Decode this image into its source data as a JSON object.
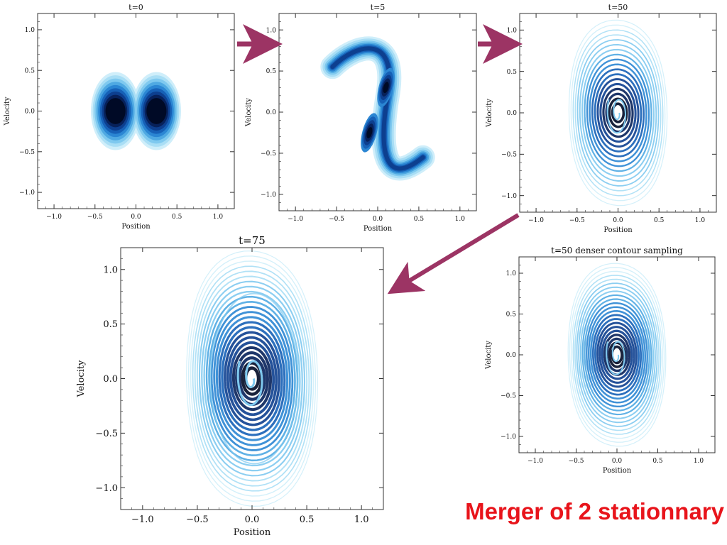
{
  "caption": {
    "text": "Merger of 2 stationnary",
    "color": "#e8141b"
  },
  "colors": {
    "arrow": "#9c3464",
    "axis": "#333333",
    "levels": [
      "#cfeefa",
      "#a9def5",
      "#7fc9ef",
      "#4fa9e2",
      "#2b86d3",
      "#1660b6",
      "#0d3f8f",
      "#07215a",
      "#000a26"
    ]
  },
  "chart_data": [
    {
      "type": "heatmap",
      "title": "t=0",
      "xlabel": "Position",
      "ylabel": "Velocity",
      "xlim": [
        -1.2,
        1.2
      ],
      "ylim": [
        -1.2,
        1.2
      ],
      "xticks": [
        "−1.0",
        "−0.5",
        "0.0",
        "0.5",
        "1.0"
      ],
      "yticks": [
        "1.0",
        "0.5",
        "0.0",
        "−0.5",
        "−1.0"
      ],
      "xtick_values": [
        -1.0,
        -0.5,
        0.0,
        0.5,
        1.0
      ],
      "ytick_values": [
        1.0,
        0.5,
        0.0,
        -0.5,
        -1.0
      ],
      "style": "filled",
      "components": [
        {
          "x": -0.25,
          "y": 0.0
        },
        {
          "x": 0.25,
          "y": 0.0
        }
      ]
    },
    {
      "type": "heatmap",
      "title": "t=5",
      "xlabel": "Position",
      "ylabel": "Velocity",
      "xlim": [
        -1.2,
        1.2
      ],
      "ylim": [
        -1.2,
        1.2
      ],
      "xticks": [
        "−1.0",
        "−0.5",
        "0.0",
        "0.5",
        "1.0"
      ],
      "yticks": [
        "1.0",
        "0.5",
        "0.0",
        "−0.5",
        "−1.0"
      ],
      "xtick_values": [
        -1.0,
        -0.5,
        0.0,
        0.5,
        1.0
      ],
      "ytick_values": [
        1.0,
        0.5,
        0.0,
        -0.5,
        -1.0
      ],
      "style": "filled-sheared",
      "components": [
        {
          "x": -0.1,
          "y": -0.25
        },
        {
          "x": 0.1,
          "y": 0.3
        }
      ]
    },
    {
      "type": "heatmap",
      "title": "t=50",
      "xlabel": "Position",
      "ylabel": "Velocity",
      "xlim": [
        -1.2,
        1.2
      ],
      "ylim": [
        -1.2,
        1.2
      ],
      "xticks": [
        "−1.0",
        "−0.5",
        "0.0",
        "0.5",
        "1.0"
      ],
      "yticks": [
        "1.0",
        "0.5",
        "0.0",
        "−0.5",
        "−1.0"
      ],
      "xtick_values": [
        -1.0,
        -0.5,
        0.0,
        0.5,
        1.0
      ],
      "ytick_values": [
        1.0,
        0.5,
        0.0,
        -0.5,
        -1.0
      ],
      "style": "contour",
      "contour_extent": {
        "x": 0.7,
        "y": 1.07
      }
    },
    {
      "type": "heatmap",
      "title": "t=75",
      "xlabel": "Position",
      "ylabel": "Velocity",
      "xlim": [
        -1.2,
        1.2
      ],
      "ylim": [
        -1.2,
        1.2
      ],
      "xticks": [
        "−1.0",
        "−0.5",
        "0.0",
        "0.5",
        "1.0"
      ],
      "yticks": [
        "1.0",
        "0.5",
        "0.0",
        "−0.5",
        "−1.0"
      ],
      "xtick_values": [
        -1.0,
        -0.5,
        0.0,
        0.5,
        1.0
      ],
      "ytick_values": [
        1.0,
        0.5,
        0.0,
        -0.5,
        -1.0
      ],
      "style": "contour",
      "contour_extent": {
        "x": 0.7,
        "y": 1.12
      }
    },
    {
      "type": "heatmap",
      "title": "t=50 denser contour sampling",
      "xlabel": "Position",
      "ylabel": "Velocity",
      "xlim": [
        -1.2,
        1.2
      ],
      "ylim": [
        -1.2,
        1.2
      ],
      "xticks": [
        "−1.0",
        "−0.5",
        "0.0",
        "0.5",
        "1.0"
      ],
      "yticks": [
        "1.0",
        "0.5",
        "0.0",
        "−0.5",
        "−1.0"
      ],
      "xtick_values": [
        -1.0,
        -0.5,
        0.0,
        0.5,
        1.0
      ],
      "ytick_values": [
        1.0,
        0.5,
        0.0,
        -0.5,
        -1.0
      ],
      "style": "contour-dense",
      "contour_extent": {
        "x": 0.7,
        "y": 1.07
      }
    }
  ]
}
